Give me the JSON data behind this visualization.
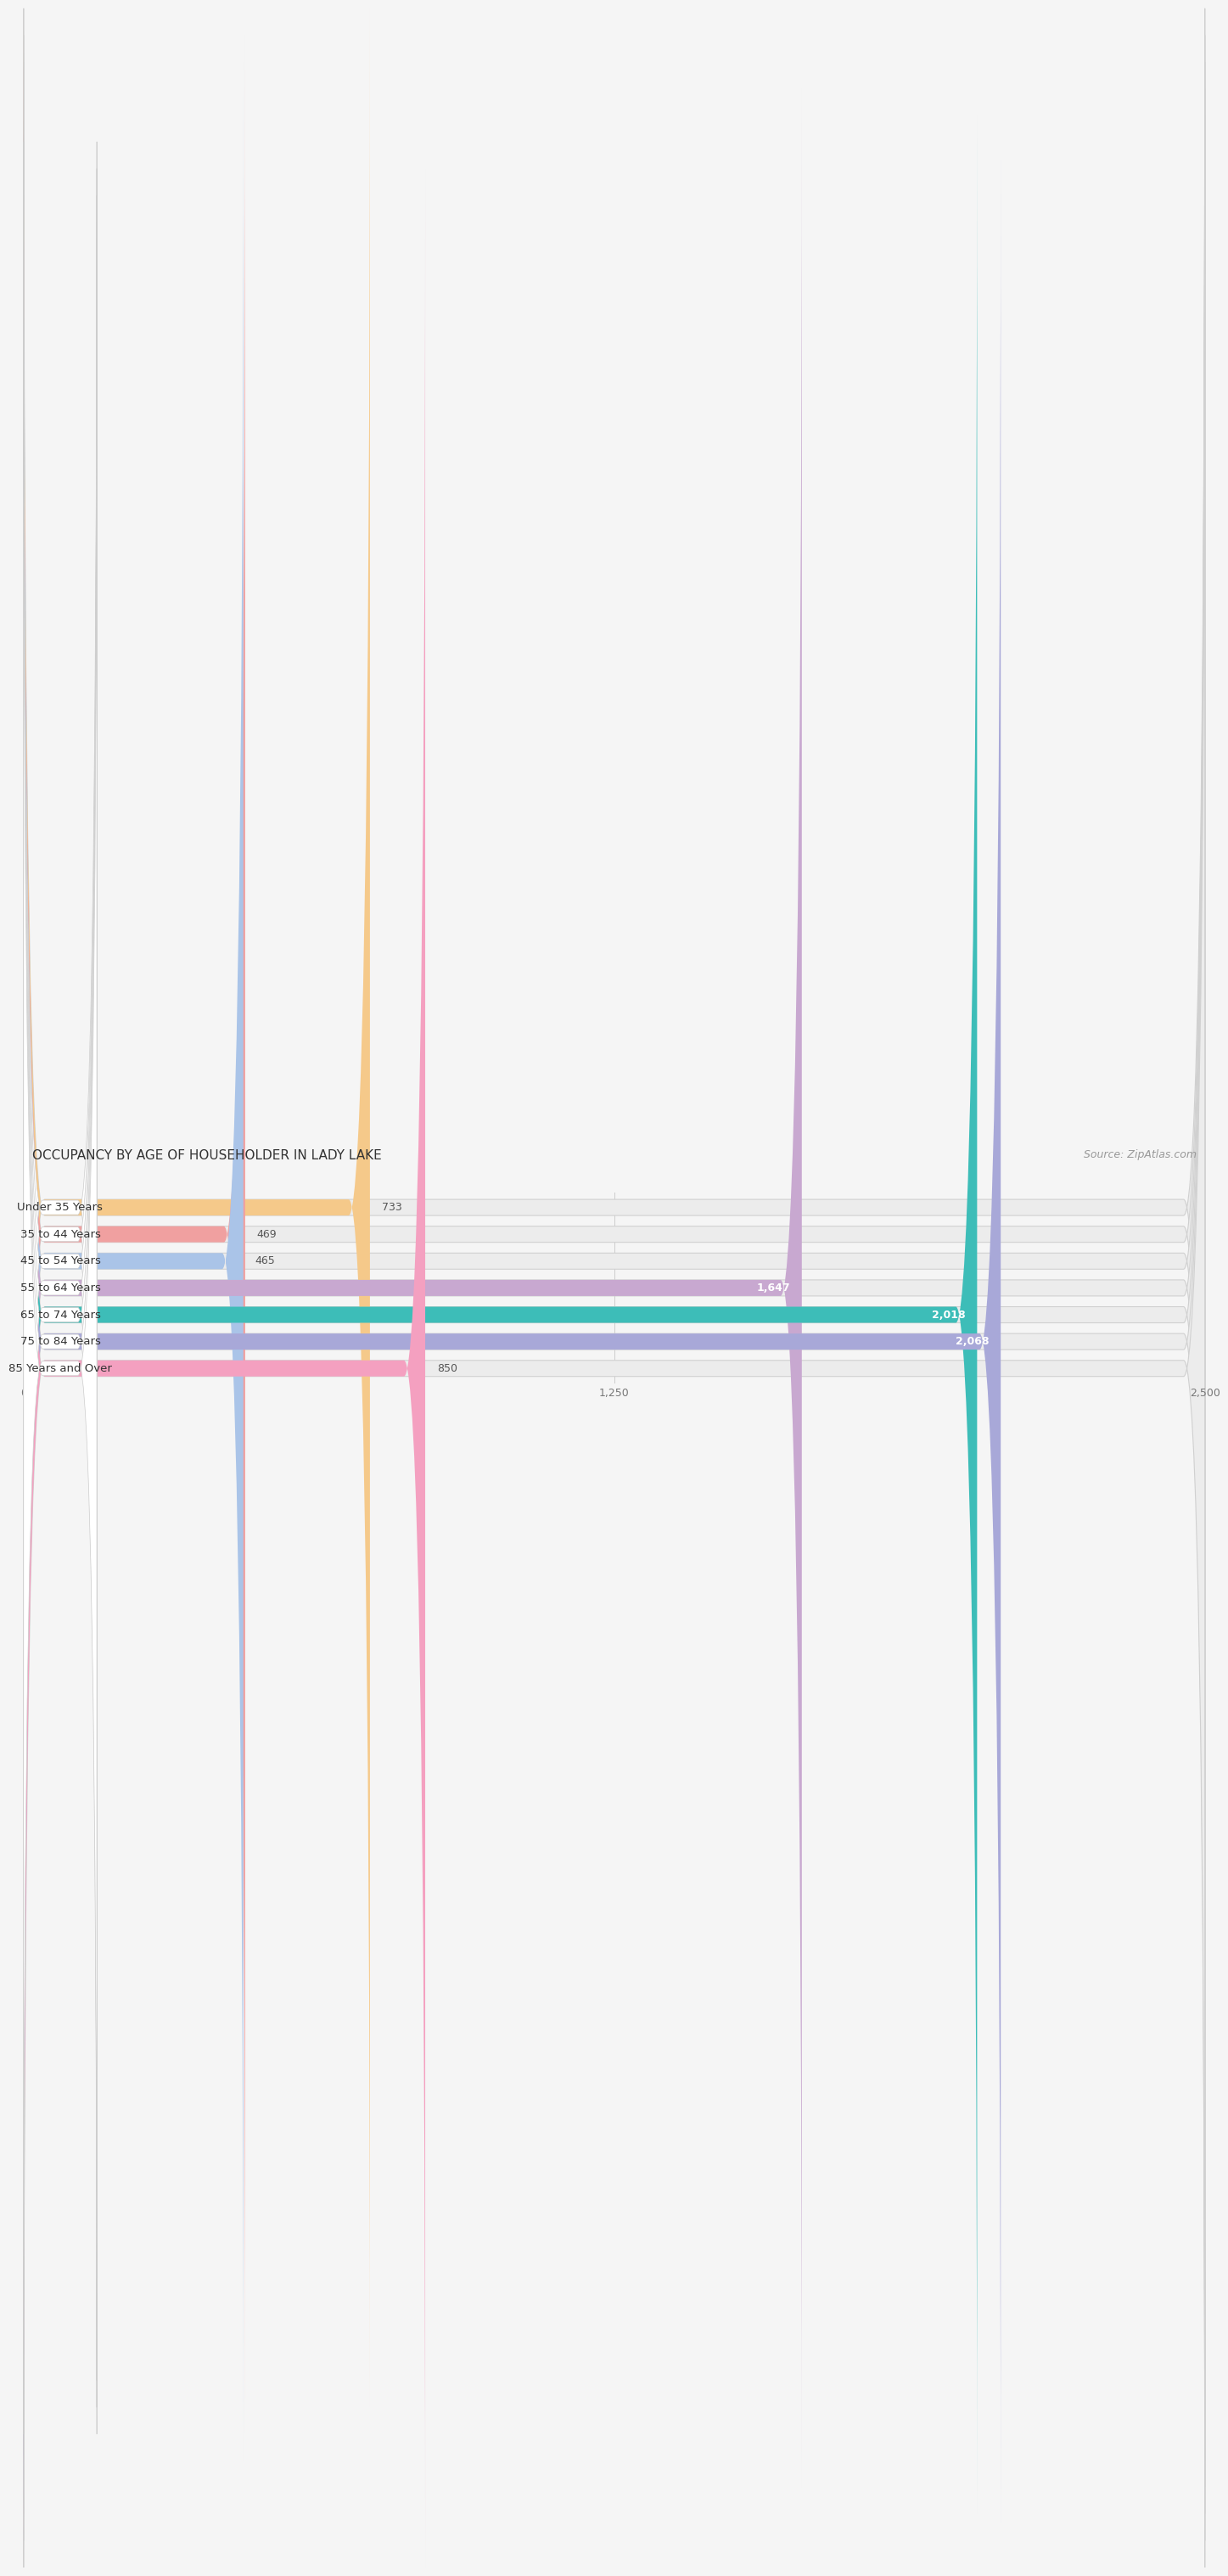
{
  "title": "OCCUPANCY BY AGE OF HOUSEHOLDER IN LADY LAKE",
  "source": "Source: ZipAtlas.com",
  "categories": [
    "Under 35 Years",
    "35 to 44 Years",
    "45 to 54 Years",
    "55 to 64 Years",
    "65 to 74 Years",
    "75 to 84 Years",
    "85 Years and Over"
  ],
  "values": [
    733,
    469,
    465,
    1647,
    2018,
    2068,
    850
  ],
  "bar_colors": [
    "#f5c98a",
    "#f0a0a0",
    "#aac4e8",
    "#c8a8d0",
    "#3dbdb8",
    "#a8a8d8",
    "#f4a0c0"
  ],
  "value_colors": [
    "#555555",
    "#555555",
    "#555555",
    "#ffffff",
    "#ffffff",
    "#ffffff",
    "#555555"
  ],
  "xlim": [
    0,
    2500
  ],
  "xticks": [
    0,
    1250,
    2500
  ],
  "xtick_labels": [
    "0",
    "1,250",
    "2,500"
  ],
  "title_fontsize": 11,
  "source_fontsize": 9,
  "label_fontsize": 9.5,
  "value_fontsize": 9,
  "tick_fontsize": 9,
  "background_color": "#f5f5f5",
  "bar_bg_color": "#e8e8e8"
}
